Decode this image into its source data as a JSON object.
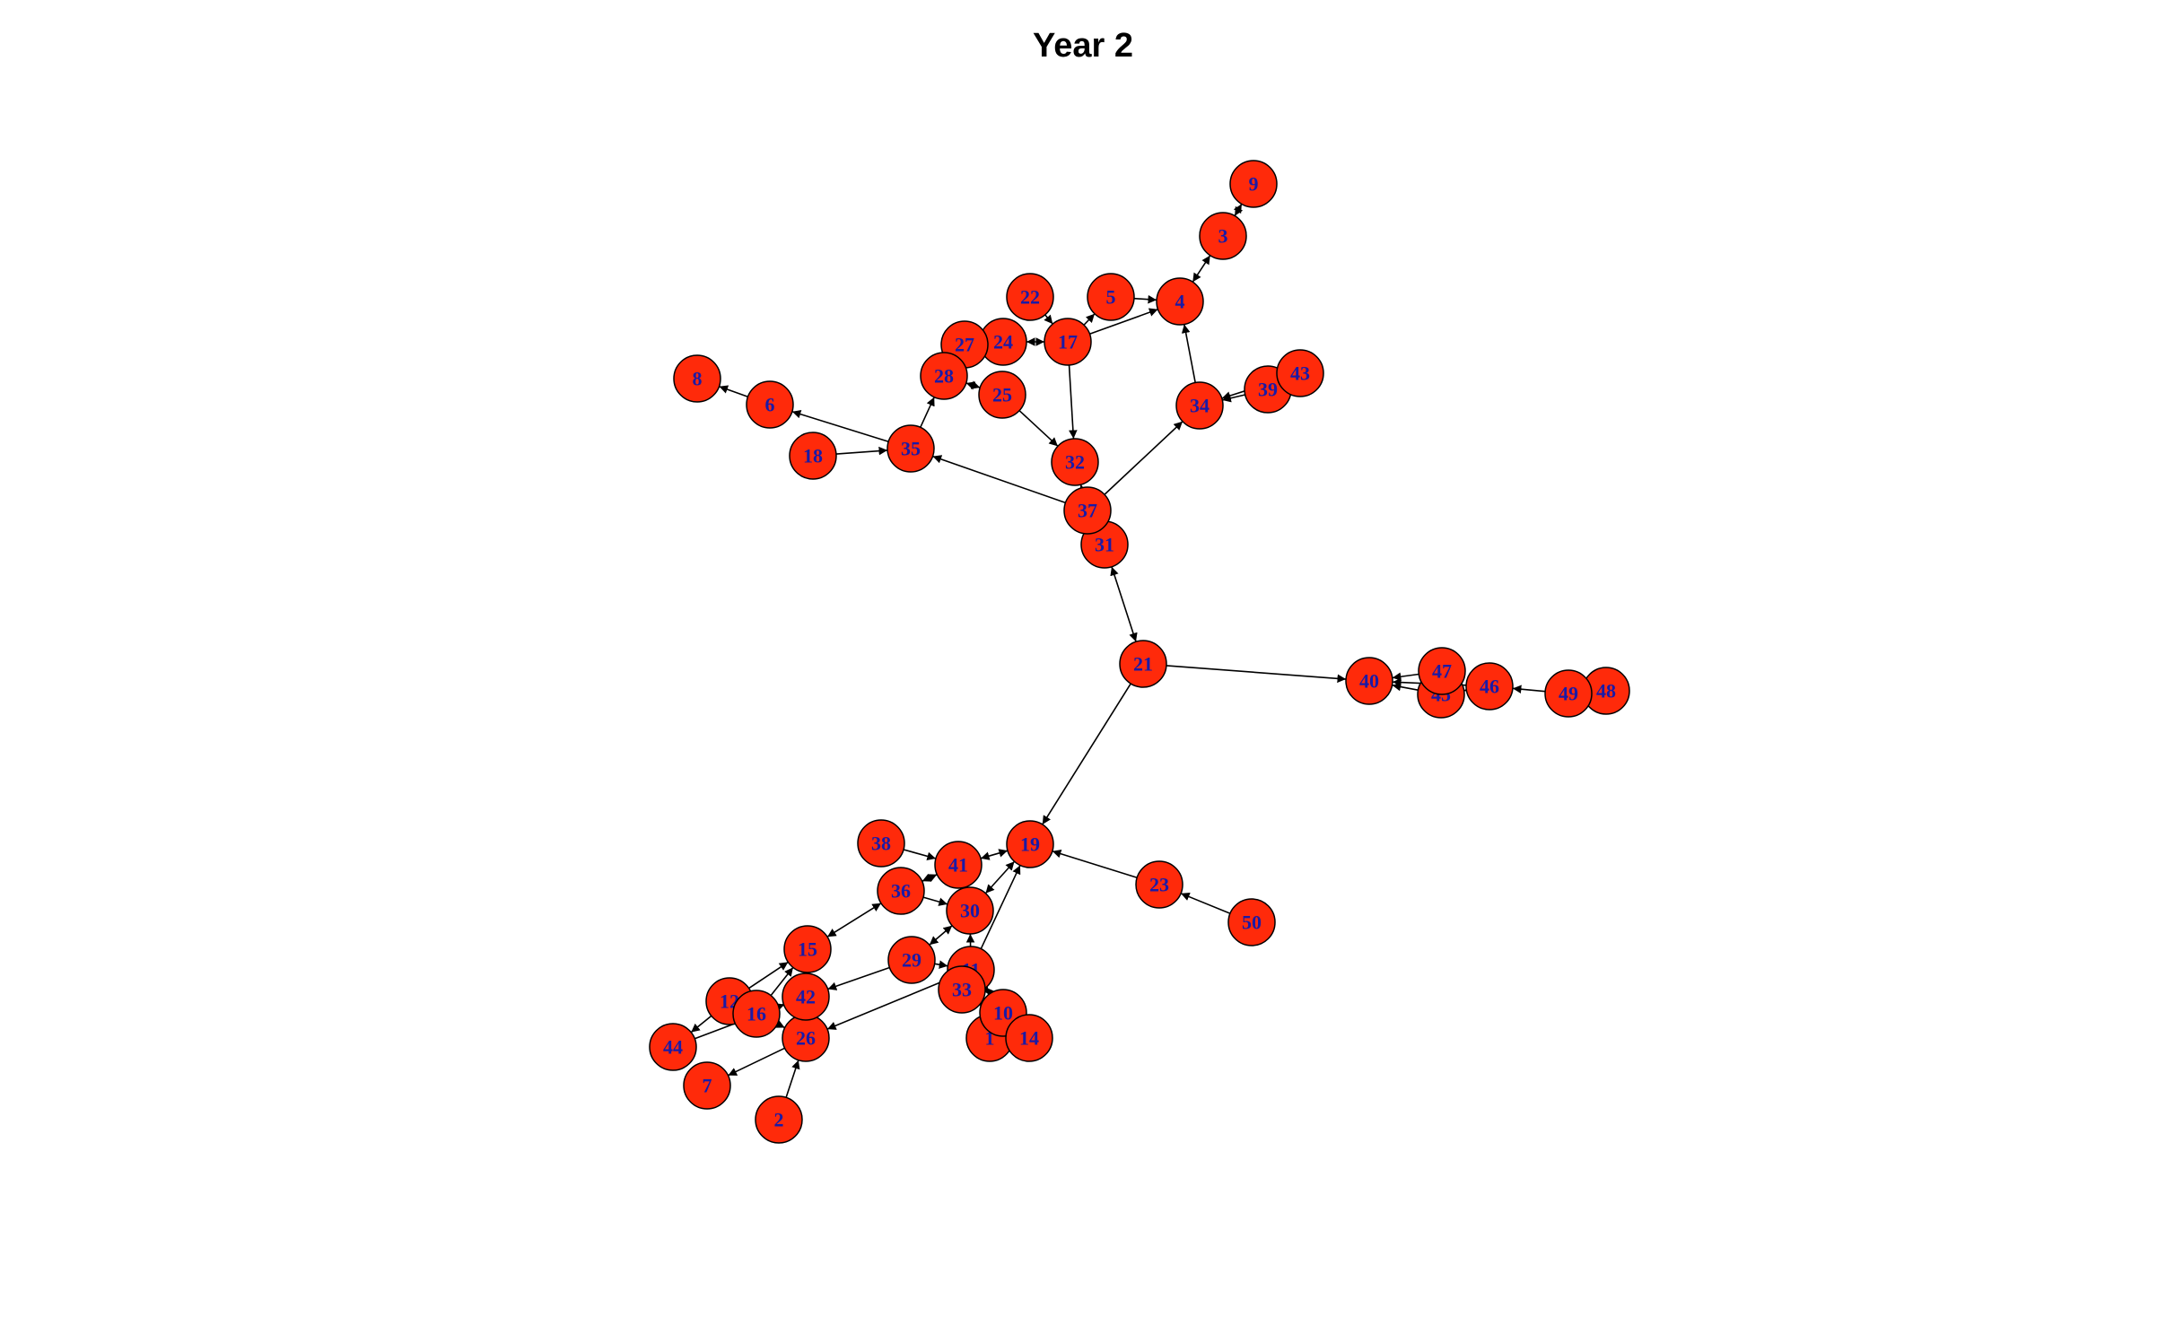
{
  "title": "Year 2",
  "colors": {
    "node_fill": "#ff2a0a",
    "node_stroke": "#000000",
    "label": "#1a1aa6",
    "edge": "#000000"
  },
  "nodes": [
    "1",
    "2",
    "3",
    "4",
    "5",
    "6",
    "7",
    "8",
    "9",
    "10",
    "11",
    "12",
    "14",
    "15",
    "16",
    "17",
    "18",
    "19",
    "21",
    "22",
    "23",
    "24",
    "25",
    "26",
    "27",
    "28",
    "29",
    "30",
    "31",
    "32",
    "33",
    "34",
    "35",
    "36",
    "37",
    "38",
    "39",
    "40",
    "41",
    "42",
    "43",
    "44",
    "45",
    "46",
    "47",
    "48",
    "49",
    "50"
  ],
  "edges": [
    {
      "from": "9",
      "to": "3",
      "bidirectional": true
    },
    {
      "from": "3",
      "to": "4",
      "bidirectional": true
    },
    {
      "from": "5",
      "to": "4"
    },
    {
      "from": "17",
      "to": "4"
    },
    {
      "from": "17",
      "to": "5"
    },
    {
      "from": "22",
      "to": "17"
    },
    {
      "from": "24",
      "to": "17",
      "bidirectional": true
    },
    {
      "from": "27",
      "to": "24"
    },
    {
      "from": "28",
      "to": "24"
    },
    {
      "from": "28",
      "to": "25",
      "bidirectional": true
    },
    {
      "from": "27",
      "to": "28"
    },
    {
      "from": "25",
      "to": "32"
    },
    {
      "from": "17",
      "to": "32"
    },
    {
      "from": "34",
      "to": "4"
    },
    {
      "from": "39",
      "to": "34"
    },
    {
      "from": "43",
      "to": "34"
    },
    {
      "from": "37",
      "to": "34"
    },
    {
      "from": "37",
      "to": "35"
    },
    {
      "from": "35",
      "to": "28"
    },
    {
      "from": "35",
      "to": "6"
    },
    {
      "from": "6",
      "to": "8"
    },
    {
      "from": "18",
      "to": "35"
    },
    {
      "from": "37",
      "to": "32"
    },
    {
      "from": "31",
      "to": "21",
      "bidirectional": true
    },
    {
      "from": "21",
      "to": "40"
    },
    {
      "from": "47",
      "to": "40"
    },
    {
      "from": "45",
      "to": "40"
    },
    {
      "from": "46",
      "to": "40"
    },
    {
      "from": "46",
      "to": "45"
    },
    {
      "from": "49",
      "to": "46"
    },
    {
      "from": "48",
      "to": "49"
    },
    {
      "from": "21",
      "to": "19"
    },
    {
      "from": "23",
      "to": "19"
    },
    {
      "from": "50",
      "to": "23"
    },
    {
      "from": "41",
      "to": "19",
      "bidirectional": true
    },
    {
      "from": "38",
      "to": "41"
    },
    {
      "from": "36",
      "to": "41",
      "bidirectional": true
    },
    {
      "from": "36",
      "to": "30"
    },
    {
      "from": "30",
      "to": "19",
      "bidirectional": true
    },
    {
      "from": "29",
      "to": "30",
      "bidirectional": true
    },
    {
      "from": "11",
      "to": "30"
    },
    {
      "from": "33",
      "to": "19"
    },
    {
      "from": "36",
      "to": "15",
      "bidirectional": true
    },
    {
      "from": "29",
      "to": "42"
    },
    {
      "from": "11",
      "to": "26"
    },
    {
      "from": "12",
      "to": "15"
    },
    {
      "from": "16",
      "to": "15"
    },
    {
      "from": "12",
      "to": "44"
    },
    {
      "from": "44",
      "to": "42"
    },
    {
      "from": "16",
      "to": "42"
    },
    {
      "from": "26",
      "to": "7"
    },
    {
      "from": "2",
      "to": "26"
    },
    {
      "from": "16",
      "to": "26"
    },
    {
      "from": "11",
      "to": "10"
    },
    {
      "from": "14",
      "to": "11"
    },
    {
      "from": "1",
      "to": "11"
    },
    {
      "from": "29",
      "to": "11"
    }
  ]
}
